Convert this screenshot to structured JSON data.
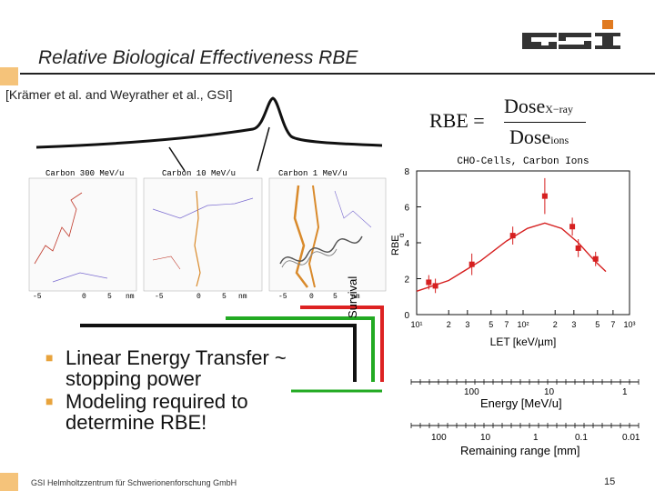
{
  "header": {
    "title": "Relative Biological Effectiveness RBE",
    "reference": "[Krämer et al. and Weyrather et al., GSI]",
    "logo_text": "GSI"
  },
  "formula": {
    "lhs": "RBE =",
    "numerator": "Dose",
    "numerator_sub": "X−ray",
    "denominator": "Dose",
    "denominator_sub": "ions"
  },
  "tracks": {
    "panel_labels": [
      "Carbon 300 MeV/u",
      "Carbon 10 MeV/u",
      "Carbon 1 MeV/u"
    ],
    "axis_ticks": [
      "-5",
      "0",
      "5",
      "nm",
      "-5",
      "0",
      "5",
      "nm",
      "-5",
      "0",
      "5",
      "nm"
    ]
  },
  "chart_data": {
    "type": "scatter",
    "title": "CHO-Cells, Carbon Ions",
    "xlabel": "LET [keV/µm]",
    "ylabel": "RBE",
    "ylabel_sub": "α",
    "xscale": "log",
    "xlim": [
      10,
      1000
    ],
    "ylim": [
      0,
      8
    ],
    "x_tick_labels": [
      "10¹",
      "2",
      "3",
      "5",
      "7",
      "10²",
      "2",
      "3",
      "5",
      "7",
      "10³"
    ],
    "y_tick_labels": [
      "0",
      "2",
      "4",
      "6",
      "8"
    ],
    "points": [
      {
        "x": 13,
        "y": 1.8,
        "err": 0.4
      },
      {
        "x": 15,
        "y": 1.6,
        "err": 0.4
      },
      {
        "x": 33,
        "y": 2.8,
        "err": 0.6
      },
      {
        "x": 80,
        "y": 4.4,
        "err": 0.5
      },
      {
        "x": 160,
        "y": 6.6,
        "err": 1.0
      },
      {
        "x": 290,
        "y": 4.9,
        "err": 0.5
      },
      {
        "x": 330,
        "y": 3.7,
        "err": 0.5
      },
      {
        "x": 480,
        "y": 3.1,
        "err": 0.4
      }
    ],
    "fit_curve": [
      {
        "x": 10,
        "y": 1.3
      },
      {
        "x": 20,
        "y": 1.9
      },
      {
        "x": 40,
        "y": 3.0
      },
      {
        "x": 70,
        "y": 4.1
      },
      {
        "x": 110,
        "y": 4.8
      },
      {
        "x": 160,
        "y": 5.1
      },
      {
        "x": 230,
        "y": 4.8
      },
      {
        "x": 330,
        "y": 4.0
      },
      {
        "x": 470,
        "y": 3.0
      },
      {
        "x": 600,
        "y": 2.4
      }
    ],
    "colors": {
      "points": "#d62020",
      "curve": "#d62020"
    }
  },
  "energy_axis": {
    "label": "Energy [MeV/u]",
    "ticks": [
      "100",
      "10",
      "1"
    ]
  },
  "range_axis": {
    "label": "Remaining range [mm]",
    "ticks": [
      "100",
      "10",
      "1",
      "0.1",
      "0.01"
    ]
  },
  "survival_label": "Survival",
  "bullets": [
    "Linear Energy Transfer ~ stopping power",
    "Modeling required to determine RBE!"
  ],
  "footer": {
    "institution": "GSI Helmholtzzentrum für Schwerionenforschung GmbH",
    "page": "15"
  }
}
